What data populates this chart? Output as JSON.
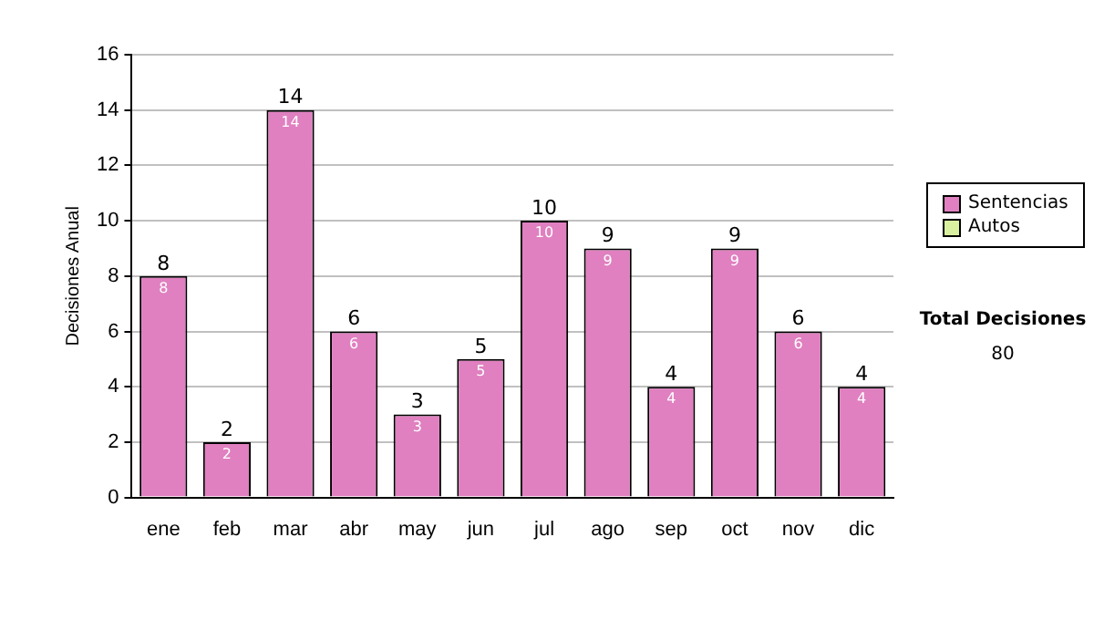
{
  "chart_data": {
    "type": "bar",
    "stacked": true,
    "ylabel": "Decisiones Anual",
    "categories": [
      "ene",
      "feb",
      "mar",
      "abr",
      "may",
      "jun",
      "jul",
      "ago",
      "sep",
      "oct",
      "nov",
      "dic"
    ],
    "series": [
      {
        "name": "Sentencias",
        "color": "#e080c0",
        "values": [
          8,
          2,
          14,
          6,
          3,
          5,
          10,
          9,
          4,
          9,
          6,
          4
        ],
        "value_labels": [
          "8",
          "2",
          "14",
          "6",
          "3",
          "5",
          "10",
          "9",
          "4",
          "9",
          "6",
          "4"
        ]
      },
      {
        "name": "Autos",
        "color": "#d8f0a0",
        "values": [
          0,
          0,
          0,
          0,
          0,
          0,
          0,
          0,
          0,
          0,
          0,
          0
        ]
      }
    ],
    "totals": [
      "8",
      "2",
      "14",
      "6",
      "3",
      "5",
      "10",
      "9",
      "4",
      "9",
      "6",
      "4"
    ],
    "ylim": [
      0,
      16
    ],
    "yticks": [
      0,
      2,
      4,
      6,
      8,
      10,
      12,
      14,
      16
    ],
    "grid": "y",
    "legend": "right",
    "annotations": [
      "Total Decisiones",
      "80"
    ]
  }
}
